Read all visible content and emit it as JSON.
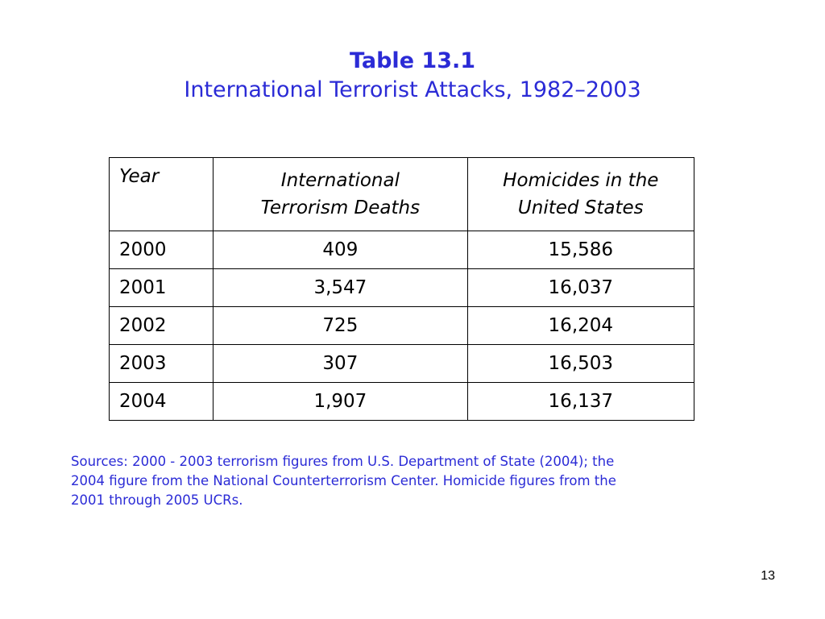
{
  "slide": {
    "title": "Table 13.1",
    "subtitle": "International Terrorist Attacks, 1982–2003",
    "page_number": "13",
    "accent_color": "#2b2bd6"
  },
  "table": {
    "headers": {
      "year": "Year",
      "deaths_line1": "International",
      "deaths_line2": "Terrorism Deaths",
      "homicides_line1": "Homicides in the",
      "homicides_line2": "United States"
    },
    "rows": [
      {
        "year": "2000",
        "deaths": "409",
        "homicides": "15,586"
      },
      {
        "year": "2001",
        "deaths": "3,547",
        "homicides": "16,037"
      },
      {
        "year": "2002",
        "deaths": "725",
        "homicides": "16,204"
      },
      {
        "year": "2003",
        "deaths": "307",
        "homicides": "16,503"
      },
      {
        "year": "2004",
        "deaths": "1,907",
        "homicides": "16,137"
      }
    ]
  },
  "sources": {
    "line1": "Sources:  2000 - 2003 terrorism figures from U.S. Department of State (2004); the",
    "line2": "2004 figure from the National Counterterrorism Center.  Homicide figures from the",
    "line3": "2001 through 2005 UCRs."
  }
}
